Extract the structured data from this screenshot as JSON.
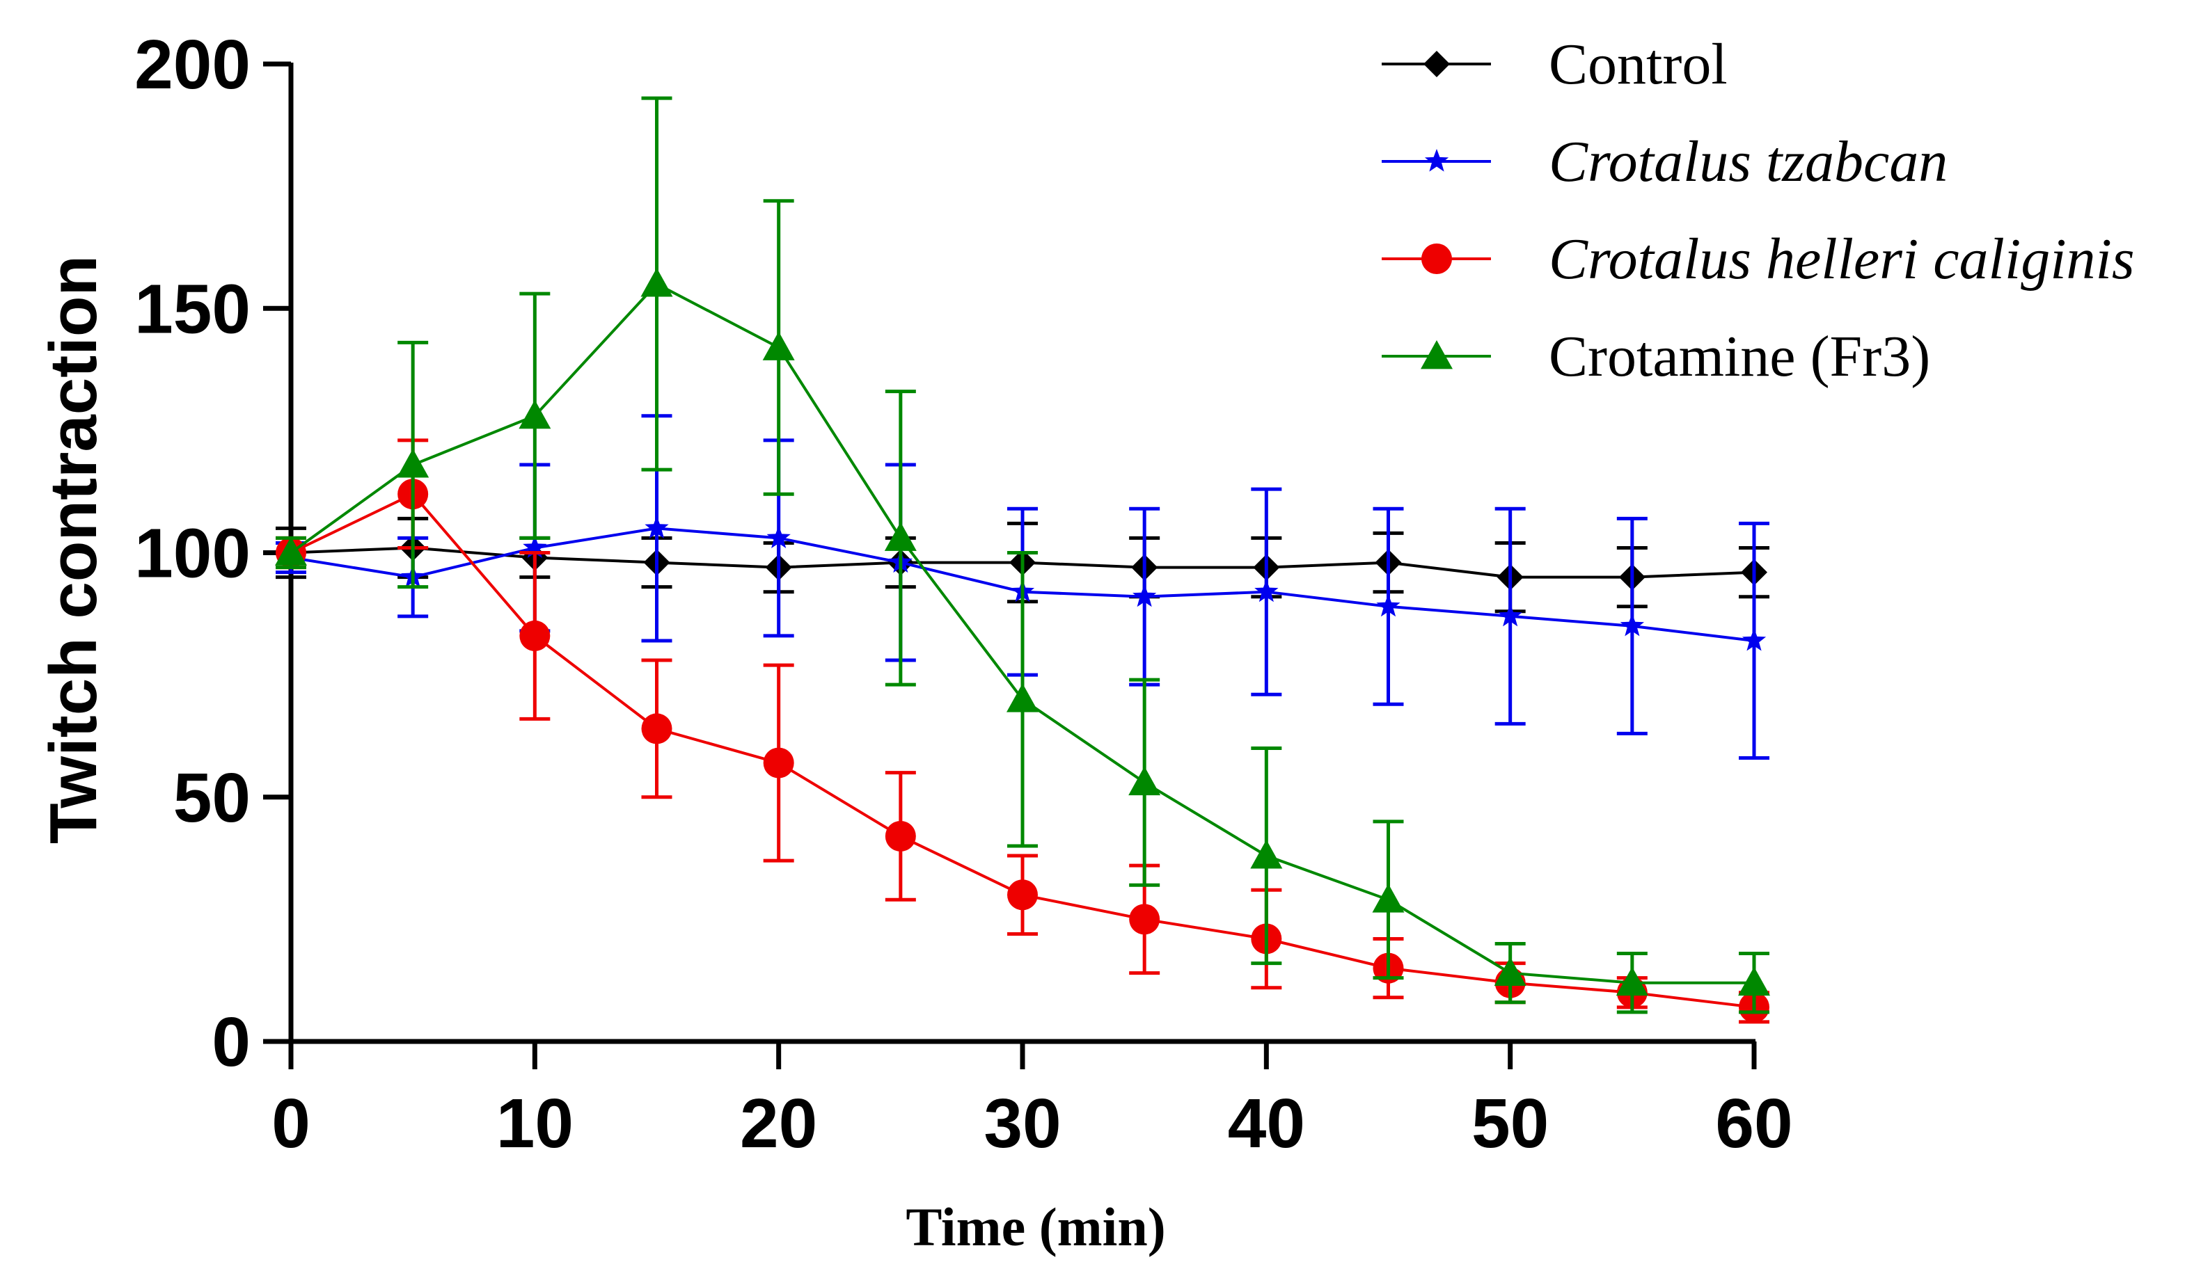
{
  "chart_data": {
    "type": "line",
    "title": "",
    "xlabel": "Time (min)",
    "ylabel": "Twitch contraction",
    "xlim": [
      0,
      60
    ],
    "ylim": [
      0,
      200
    ],
    "xticks": [
      0,
      10,
      20,
      30,
      40,
      50,
      60
    ],
    "yticks": [
      0,
      50,
      100,
      150,
      200
    ],
    "grid": false,
    "legend_position": "top-right",
    "x": [
      0,
      5,
      10,
      15,
      20,
      25,
      30,
      35,
      40,
      45,
      50,
      55,
      60
    ],
    "series": [
      {
        "name": "Control",
        "italic": false,
        "color": "#000000",
        "marker": "diamond",
        "values": [
          100,
          101,
          99,
          98,
          97,
          98,
          98,
          97,
          97,
          98,
          95,
          95,
          96
        ],
        "errors": [
          5,
          6,
          4,
          5,
          5,
          5,
          8,
          6,
          6,
          6,
          7,
          6,
          5
        ]
      },
      {
        "name": "Crotalus tzabcan",
        "italic": true,
        "color": "#0000ee",
        "marker": "star",
        "values": [
          99,
          95,
          101,
          105,
          103,
          98,
          92,
          91,
          92,
          89,
          87,
          85,
          82
        ],
        "errors": [
          3,
          8,
          17,
          23,
          20,
          20,
          17,
          18,
          21,
          20,
          22,
          22,
          24
        ]
      },
      {
        "name": "Crotalus helleri caliginis",
        "italic": false,
        "color": "#ee0000",
        "marker": "circle",
        "values": [
          100,
          112,
          83,
          64,
          57,
          42,
          30,
          25,
          21,
          15,
          12,
          10,
          7
        ],
        "errors": [
          3,
          11,
          17,
          14,
          20,
          13,
          8,
          11,
          10,
          6,
          4,
          3,
          3
        ]
      },
      {
        "name": "Crotamine (Fr3)",
        "italic": false,
        "color": "#008800",
        "marker": "triangle",
        "values": [
          100,
          118,
          128,
          155,
          142,
          103,
          70,
          53,
          38,
          29,
          14,
          12,
          12
        ],
        "errors": [
          3,
          25,
          25,
          38,
          30,
          30,
          30,
          21,
          22,
          16,
          6,
          6,
          6
        ]
      }
    ]
  }
}
